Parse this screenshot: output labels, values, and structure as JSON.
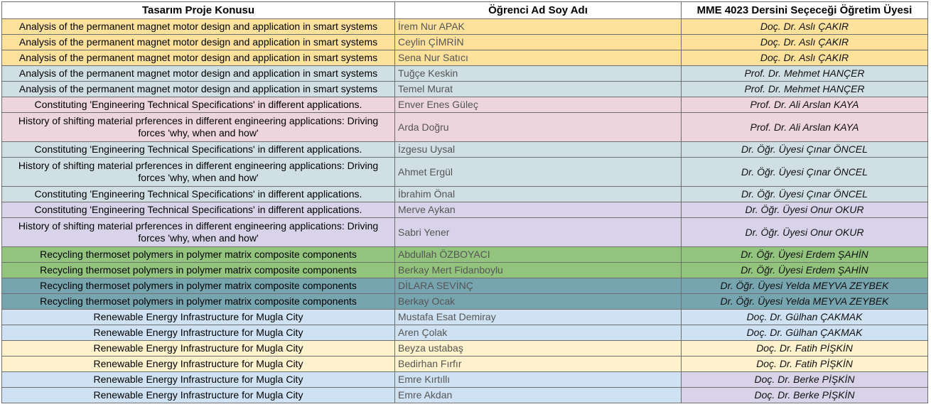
{
  "headers": {
    "topic": "Tasarım Proje Konusu",
    "student": "Öğrenci Ad Soy Adı",
    "advisor": "MME 4023 Dersini Seçeceği Öğretim Üyesi"
  },
  "row_colors": {
    "yellow": "#fee29c",
    "grey_blue": "#d0dfe3",
    "pink": "#ecd5dd",
    "lavender": "#d8d3e8",
    "green": "#93c47d",
    "teal": "#76a5af",
    "light_blue": "#cfe2f3",
    "cream": "#fff2cc"
  },
  "rows": [
    {
      "topic": "Analysis of the permanent magnet motor design and application in smart systems",
      "student": "İrem Nur APAK",
      "advisor": "Doç. Dr. Aslı ÇAKIR"
    },
    {
      "topic": "Analysis of the permanent magnet motor design and application in smart systems",
      "student": "Ceylin ÇİMRİN",
      "advisor": "Doç. Dr. Aslı ÇAKIR"
    },
    {
      "topic": "Analysis of the permanent magnet motor design and application in smart systems",
      "student": "Sena Nur Satıcı",
      "advisor": "Doç. Dr. Aslı ÇAKIR"
    },
    {
      "topic": "Analysis of the permanent magnet motor design and application in smart systems",
      "student": "Tuğçe Keskin",
      "advisor": "Prof. Dr. Mehmet HANÇER"
    },
    {
      "topic": "Analysis of the permanent magnet motor design and application in smart systems",
      "student": "Temel Murat",
      "advisor": "Prof. Dr. Mehmet HANÇER"
    },
    {
      "topic": "Constituting 'Engineering Technical Specifications' in different applications.",
      "student": "Enver Enes Güleç",
      "advisor": "Prof. Dr. Ali Arslan KAYA"
    },
    {
      "topic": "History of shifting material prferences in different engineering applications: Driving forces 'why, when and how'",
      "student": "Arda Doğru",
      "advisor": "Prof. Dr. Ali Arslan KAYA"
    },
    {
      "topic": "Constituting 'Engineering Technical Specifications' in different applications.",
      "student": "İzgesu Uysal",
      "advisor": "Dr. Öğr. Üyesi Çınar ÖNCEL"
    },
    {
      "topic": "History of shifting material prferences in different engineering applications: Driving forces 'why, when and how'",
      "student": "Ahmet Ergül",
      "advisor": "Dr. Öğr. Üyesi Çınar ÖNCEL"
    },
    {
      "topic": "Constituting 'Engineering Technical Specifications' in different applications.",
      "student": "İbrahim Önal",
      "advisor": "Dr. Öğr. Üyesi Çınar ÖNCEL"
    },
    {
      "topic": "Constituting 'Engineering Technical Specifications' in different applications.",
      "student": "Merve Aykan",
      "advisor": "Dr. Öğr. Üyesi Onur OKUR"
    },
    {
      "topic": "History of shifting material prferences in different engineering applications: Driving forces 'why, when and how'",
      "student": "Sabri Yener",
      "advisor": "Dr. Öğr. Üyesi Onur OKUR"
    },
    {
      "topic": "Recycling thermoset polymers in polymer matrix composite components",
      "student": "Abdullah ÖZBOYACI",
      "advisor": "Dr. Öğr. Üyesi Erdem ŞAHİN"
    },
    {
      "topic": "Recycling thermoset polymers in polymer matrix composite components",
      "student": "Berkay Mert Fidanboylu",
      "advisor": "Dr. Öğr. Üyesi Erdem ŞAHİN"
    },
    {
      "topic": "Recycling thermoset polymers in polymer matrix composite components",
      "student": "DİLARA SEVİNÇ",
      "advisor": "Dr. Öğr. Üyesi Yelda MEYVA ZEYBEK"
    },
    {
      "topic": "Recycling thermoset polymers in polymer matrix composite components",
      "student": "Berkay Ocak",
      "advisor": "Dr. Öğr. Üyesi Yelda MEYVA ZEYBEK"
    },
    {
      "topic": "Renewable Energy Infrastructure for Mugla City",
      "student": "Mustafa Esat Demiray",
      "advisor": "Doç. Dr. Gülhan ÇAKMAK"
    },
    {
      "topic": "Renewable Energy Infrastructure for Mugla City",
      "student": "Aren Çolak",
      "advisor": "Doç. Dr. Gülhan ÇAKMAK"
    },
    {
      "topic": "Renewable Energy Infrastructure for Mugla City",
      "student": "Beyza ustabaş",
      "advisor": "Doç. Dr. Fatih PİŞKİN"
    },
    {
      "topic": "Renewable Energy Infrastructure for Mugla City",
      "student": "Bedirhan Fırfır",
      "advisor": "Doç. Dr. Fatih PİŞKİN"
    },
    {
      "topic": "Renewable Energy Infrastructure for Mugla City",
      "student": "Emre Kırtıllı",
      "advisor": "Doç. Dr. Berke PİŞKİN"
    },
    {
      "topic": "Renewable Energy Infrastructure for Mugla City",
      "student": "Emre Akdan",
      "advisor": "Doç. Dr. Berke PİŞKİN"
    }
  ]
}
